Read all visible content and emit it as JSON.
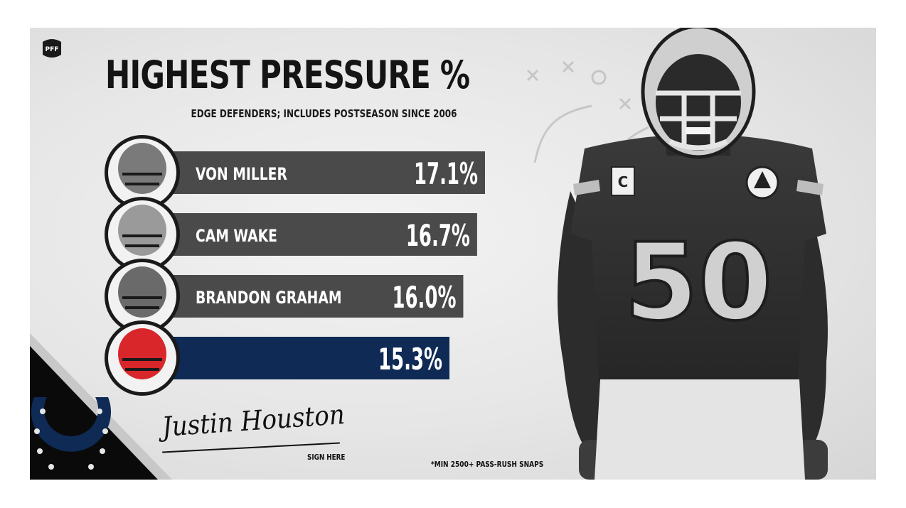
{
  "header": {
    "logo_text": "PFF",
    "title": "HIGHEST PRESSURE %",
    "subtitle": "EDGE DEFENDERS; INCLUDES POSTSEASON SINCE 2006"
  },
  "chart_data": {
    "type": "bar",
    "title": "HIGHEST PRESSURE %",
    "subtitle": "EDGE DEFENDERS; INCLUDES POSTSEASON SINCE 2006",
    "categories": [
      "VON MILLER",
      "CAM WAKE",
      "BRANDON GRAHAM",
      ""
    ],
    "values": [
      17.1,
      16.7,
      16.0,
      15.3
    ],
    "value_labels": [
      "17.1%",
      "16.7%",
      "16.0%",
      "15.3%"
    ],
    "orientation": "horizontal",
    "colors": [
      "#4a4a4a",
      "#4a4a4a",
      "#4a4a4a",
      "#0e2a55"
    ],
    "highlight_index": 3,
    "xlim": [
      0,
      17.1
    ],
    "grid": false
  },
  "signature": {
    "name": "Justin Houston",
    "caption": "SIGN HERE"
  },
  "footnote": "*MIN 2500+ PASS-RUSH SNAPS",
  "player": {
    "jersey_number": "50",
    "captain_patch": "C"
  },
  "theme": {
    "bar_gray": "#4a4a4a",
    "bar_highlight": "#0e2a55",
    "team_blue": "#0e2a55",
    "helmet_red": "#d8262b",
    "text_dark": "#141414"
  },
  "icons": {
    "pff_logo": "pff-logo-icon",
    "team_logo": "horseshoe-logo-icon"
  }
}
